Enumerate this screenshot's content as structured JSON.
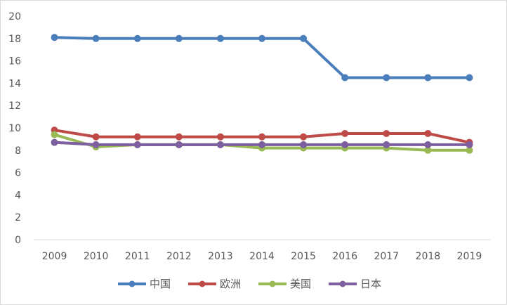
{
  "chart_data": {
    "type": "line",
    "title": "",
    "xlabel": "",
    "ylabel": "",
    "x": [
      "2009",
      "2010",
      "2011",
      "2012",
      "2013",
      "2014",
      "2015",
      "2016",
      "2017",
      "2018",
      "2019"
    ],
    "ylim": [
      0,
      20
    ],
    "yticks": [
      "0",
      "2",
      "4",
      "6",
      "8",
      "10",
      "12",
      "14",
      "16",
      "18",
      "20"
    ],
    "grid": false,
    "legend": "bottom",
    "series": [
      {
        "name": "中国",
        "color": "#4a7ebb",
        "values": [
          18.1,
          18.0,
          18.0,
          18.0,
          18.0,
          18.0,
          18.0,
          14.5,
          14.5,
          14.5,
          14.5
        ]
      },
      {
        "name": "欧洲",
        "color": "#be4b48",
        "values": [
          9.8,
          9.2,
          9.2,
          9.2,
          9.2,
          9.2,
          9.2,
          9.5,
          9.5,
          9.5,
          8.7
        ]
      },
      {
        "name": "美国",
        "color": "#98b954",
        "values": [
          9.4,
          8.3,
          8.5,
          8.5,
          8.5,
          8.2,
          8.2,
          8.2,
          8.2,
          8.0,
          8.0
        ]
      },
      {
        "name": "日本",
        "color": "#7d5fa0",
        "values": [
          8.7,
          8.5,
          8.5,
          8.5,
          8.5,
          8.5,
          8.5,
          8.5,
          8.5,
          8.5,
          8.5
        ]
      }
    ]
  }
}
